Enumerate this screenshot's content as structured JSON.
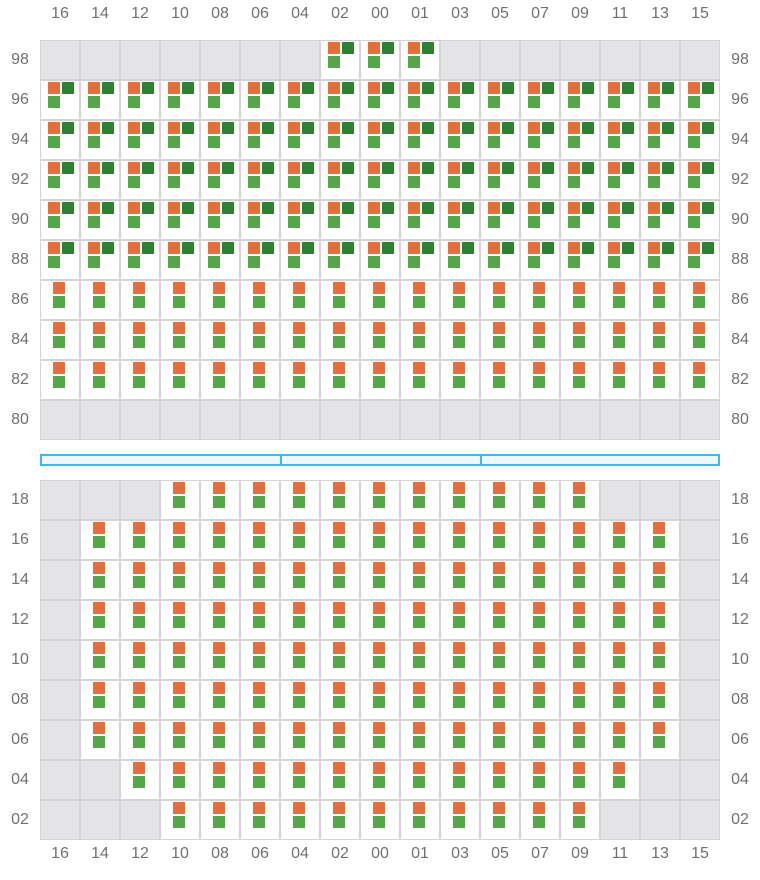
{
  "columns": [
    "16",
    "14",
    "12",
    "10",
    "08",
    "06",
    "04",
    "02",
    "00",
    "01",
    "03",
    "05",
    "07",
    "09",
    "11",
    "13",
    "15"
  ],
  "legend_codes": {
    "E": "empty",
    "3": "orange + dark green + light green",
    "2": "orange + light green"
  },
  "colors": {
    "orange": "#e36e39",
    "dark_green": "#2e8032",
    "light_green": "#55a84a",
    "empty": "#e4e4e7",
    "border": "#d4d4d8",
    "separator": "#3ab8ee"
  },
  "top_section": {
    "rows": [
      {
        "label": "98",
        "cells": "EEEEEEE333EEEEEEE"
      },
      {
        "label": "96",
        "cells": "33333333333333333"
      },
      {
        "label": "94",
        "cells": "33333333333333333"
      },
      {
        "label": "92",
        "cells": "33333333333333333"
      },
      {
        "label": "90",
        "cells": "33333333333333333"
      },
      {
        "label": "88",
        "cells": "33333333333333333"
      },
      {
        "label": "86",
        "cells": "22222222222222222"
      },
      {
        "label": "84",
        "cells": "22222222222222222"
      },
      {
        "label": "82",
        "cells": "22222222222222222"
      },
      {
        "label": "80",
        "cells": "EEEEEEEEEEEEEEEEE"
      }
    ]
  },
  "separator_segments": 3,
  "bottom_section": {
    "rows": [
      {
        "label": "18",
        "cells": "EEE22222222222EEE"
      },
      {
        "label": "16",
        "cells": "E222222222222222E"
      },
      {
        "label": "14",
        "cells": "E222222222222222E"
      },
      {
        "label": "12",
        "cells": "E222222222222222E"
      },
      {
        "label": "10",
        "cells": "E222222222222222E"
      },
      {
        "label": "08",
        "cells": "E222222222222222E"
      },
      {
        "label": "06",
        "cells": "E222222222222222E"
      },
      {
        "label": "04",
        "cells": "EE2222222222222EE"
      },
      {
        "label": "02",
        "cells": "EEE22222222222EEE"
      }
    ]
  }
}
